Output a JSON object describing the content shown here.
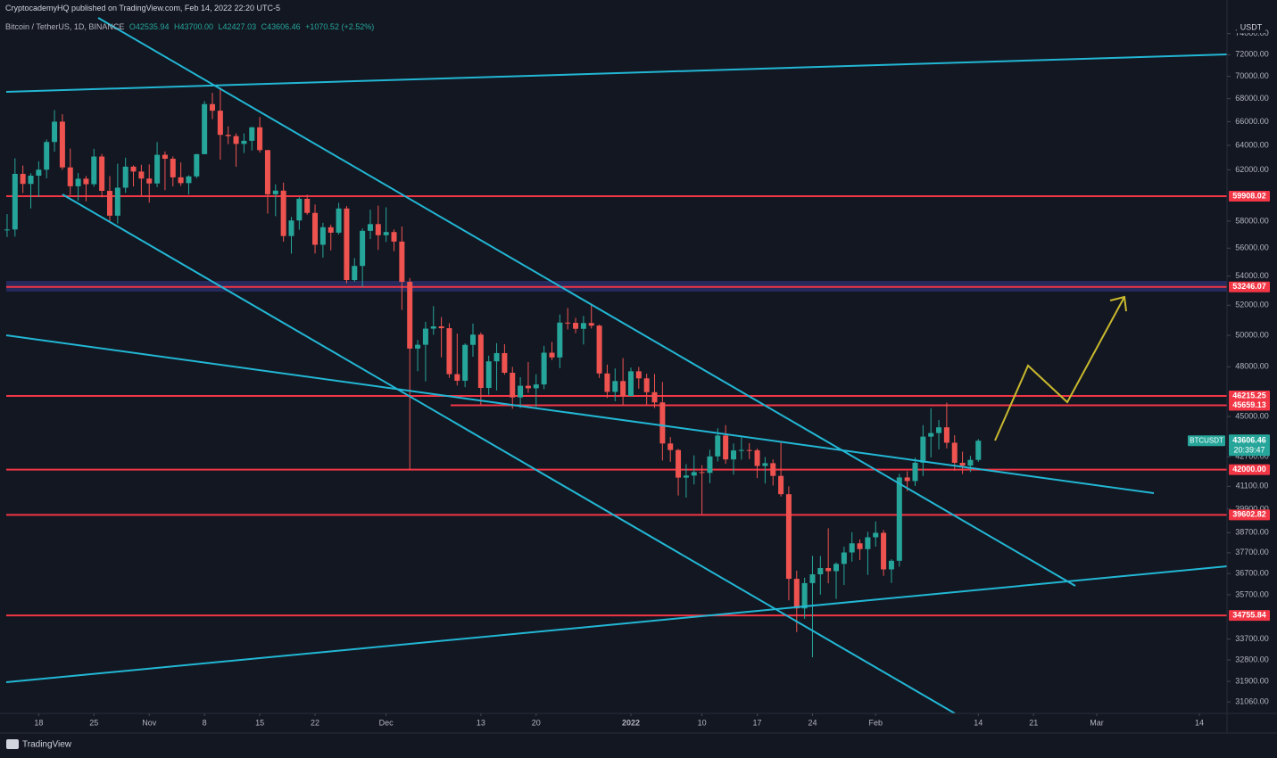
{
  "header": {
    "publisher": "CryptocademyHQ published on TradingView.com, Feb 14, 2022 22:20 UTC-5"
  },
  "footer": {
    "brand": "TradingView"
  },
  "chart_data": {
    "type": "candlestick",
    "symbol": "Bitcoin / TetherUS, 1D, BINANCE",
    "ohlc_legend": [
      "O42535.94",
      "H43700.00",
      "L42427.03",
      "C43606.46",
      "+1070.52 (+2.52%)"
    ],
    "currency": "USDT",
    "up_color": "#26a69a",
    "down_color": "#ef5350",
    "open": [
      57347,
      57374,
      61672,
      60875,
      61528,
      62009,
      64280,
      66001,
      62193,
      60688,
      61286,
      60852,
      63078,
      60328,
      58413,
      60575,
      62253,
      61859,
      61299,
      60911,
      63219,
      62896,
      61395,
      60937,
      61470,
      63273,
      67525,
      66947,
      64882,
      64774,
      64122,
      64380,
      65519,
      63606,
      60058,
      60344,
      56891,
      58052,
      59707,
      58622,
      56247,
      57541,
      57138,
      58960,
      53726,
      54721,
      57274,
      57776,
      56950,
      57184,
      56480,
      53601,
      49152,
      49396,
      50441,
      50589,
      50471,
      47545,
      47140,
      49389,
      50053,
      46702,
      48343,
      48864,
      47632,
      46131,
      46834,
      46681,
      46914,
      48889,
      48588,
      50838,
      50821,
      50429,
      50809,
      50640,
      47588,
      46464,
      47120,
      46216,
      47722,
      47286,
      46446,
      45832,
      43451,
      43082,
      41566,
      41679,
      41864,
      41822,
      42729,
      43902,
      42560,
      43059,
      43084,
      43071,
      42201,
      42352,
      41660,
      40680,
      36445,
      35071,
      36244,
      36660,
      36958,
      36809,
      37160,
      37716,
      38166,
      37881,
      38466,
      38690,
      36896,
      37311,
      41574,
      41382,
      42380,
      43839,
      44043,
      44372,
      43495,
      42373,
      42217,
      42535.94
    ],
    "high": [
      58532,
      62933,
      62350,
      61720,
      62695,
      64486,
      67000,
      66639,
      63732,
      61747,
      61500,
      63710,
      63293,
      61496,
      62499,
      62980,
      62359,
      62405,
      62437,
      64270,
      63500,
      63086,
      62595,
      61560,
      63286,
      67789,
      68524,
      69000,
      65600,
      65000,
      65000,
      65550,
      66401,
      63617,
      60840,
      60976,
      58320,
      59845,
      60029,
      59266,
      57875,
      57735,
      59398,
      59150,
      55280,
      57445,
      58865,
      59176,
      59053,
      57375,
      57600,
      53859,
      49699,
      50891,
      51936,
      51200,
      50797,
      50125,
      49485,
      50777,
      50189,
      48700,
      49500,
      49436,
      47995,
      47360,
      48300,
      47537,
      49328,
      49576,
      51375,
      51810,
      51156,
      51280,
      52088,
      50704,
      48139,
      47900,
      48548,
      47954,
      47990,
      47570,
      47557,
      47070,
      43816,
      43145,
      42300,
      42786,
      42248,
      43100,
      44322,
      44500,
      43448,
      43800,
      43475,
      43176,
      42691,
      42559,
      43505,
      41100,
      36835,
      36499,
      37550,
      37545,
      38919,
      37234,
      38000,
      38720,
      38359,
      38744,
      39265,
      38835,
      37387,
      41772,
      41913,
      42656,
      44500,
      45492,
      44799,
      45821,
      43920,
      42992,
      42760,
      43700
    ],
    "low": [
      56818,
      56850,
      60150,
      58963,
      59844,
      61322,
      63481,
      62000,
      60000,
      59562,
      59510,
      60650,
      59817,
      58000,
      57820,
      60174,
      60673,
      59945,
      59405,
      60624,
      60382,
      60677,
      60721,
      60050,
      61322,
      63273,
      66222,
      62822,
      64100,
      62250,
      63360,
      63576,
      63400,
      58574,
      58373,
      56474,
      55600,
      57353,
      58486,
      55610,
      55317,
      55837,
      57000,
      53500,
      53610,
      53256,
      56666,
      55875,
      56458,
      55777,
      51680,
      42000,
      47727,
      47100,
      50039,
      48600,
      47320,
      46852,
      46751,
      48638,
      45672,
      46290,
      46547,
      47511,
      45456,
      45500,
      46406,
      45558,
      46630,
      48421,
      47920,
      50384,
      50142,
      49412,
      50449,
      47313,
      46096,
      45900,
      45678,
      46208,
      46654,
      45696,
      45500,
      42500,
      42430,
      40610,
      40501,
      41200,
      39650,
      41268,
      42450,
      42311,
      41725,
      42555,
      42581,
      41540,
      41250,
      41138,
      40553,
      35440,
      34008,
      34601,
      32917,
      35701,
      36234,
      35507,
      36155,
      37268,
      37351,
      36632,
      38000,
      36586,
      36250,
      37026,
      40843,
      41116,
      41645,
      42666,
      43117,
      43174,
      41938,
      41760,
      41870,
      42427.03
    ],
    "close": [
      57374,
      61672,
      60875,
      61528,
      62009,
      64280,
      66001,
      62193,
      60688,
      61286,
      60852,
      63078,
      60328,
      58413,
      60575,
      62253,
      61859,
      61299,
      60911,
      63219,
      62896,
      61395,
      60937,
      61470,
      63273,
      67525,
      66947,
      64882,
      64774,
      64122,
      64380,
      65519,
      63606,
      60058,
      60344,
      56891,
      58052,
      59707,
      58622,
      56247,
      57541,
      57138,
      58960,
      53726,
      54721,
      57274,
      57776,
      56950,
      57184,
      56480,
      53601,
      49152,
      49396,
      50441,
      50589,
      50471,
      47545,
      47140,
      49389,
      50053,
      46702,
      48343,
      48864,
      47632,
      46131,
      46834,
      46681,
      46914,
      48889,
      48588,
      50838,
      50821,
      50429,
      50809,
      50640,
      47588,
      46464,
      47120,
      46216,
      47722,
      47286,
      46446,
      45832,
      43451,
      43082,
      41566,
      41679,
      41864,
      41822,
      42729,
      43902,
      42560,
      43059,
      43084,
      43071,
      42201,
      42352,
      41660,
      40680,
      36445,
      35071,
      36244,
      36660,
      36958,
      36809,
      37160,
      37716,
      38166,
      37881,
      38466,
      38690,
      36896,
      37311,
      41574,
      41382,
      42380,
      43839,
      44043,
      44372,
      43495,
      42373,
      42217,
      42535,
      43606.46
    ],
    "xlim": [
      -0.9,
      154.5
    ],
    "xticks": [
      {
        "value": 4,
        "label": "18"
      },
      {
        "value": 11,
        "label": "25"
      },
      {
        "value": 18,
        "label": "Nov"
      },
      {
        "value": 25,
        "label": "8"
      },
      {
        "value": 32,
        "label": "15"
      },
      {
        "value": 39,
        "label": "22"
      },
      {
        "value": 48,
        "label": "Dec"
      },
      {
        "value": 60,
        "label": "13"
      },
      {
        "value": 67,
        "label": "20"
      },
      {
        "value": 79,
        "label": "2022"
      },
      {
        "value": 88,
        "label": "10"
      },
      {
        "value": 95,
        "label": "17"
      },
      {
        "value": 102,
        "label": "24"
      },
      {
        "value": 110,
        "label": "Feb"
      },
      {
        "value": 123,
        "label": "14"
      },
      {
        "value": 130,
        "label": "21"
      },
      {
        "value": 138,
        "label": "Mar"
      },
      {
        "value": 151,
        "label": "14"
      }
    ],
    "ylim": [
      30600,
      77300
    ],
    "log_scale": true,
    "grid": false,
    "yticks": [
      {
        "value": 74000,
        "label": "74000.00"
      },
      {
        "value": 72000,
        "label": "72000.00"
      },
      {
        "value": 70000,
        "label": "70000.00"
      },
      {
        "value": 68000,
        "label": "68000.00"
      },
      {
        "value": 66000,
        "label": "66000.00"
      },
      {
        "value": 64000,
        "label": "64000.00"
      },
      {
        "value": 62000,
        "label": "62000.00"
      },
      {
        "value": 58000,
        "label": "58000.00"
      },
      {
        "value": 56000,
        "label": "56000.00"
      },
      {
        "value": 54000,
        "label": "54000.00"
      },
      {
        "value": 52000,
        "label": "52000.00"
      },
      {
        "value": 50000,
        "label": "50000.00"
      },
      {
        "value": 48000,
        "label": "48000.00"
      },
      {
        "value": 45000,
        "label": "45000.00"
      },
      {
        "value": 42700,
        "label": "42700.00"
      },
      {
        "value": 41100,
        "label": "41100.00"
      },
      {
        "value": 39900,
        "label": "39900.00"
      },
      {
        "value": 38700,
        "label": "38700.00"
      },
      {
        "value": 37700,
        "label": "37700.00"
      },
      {
        "value": 36700,
        "label": "36700.00"
      },
      {
        "value": 35700,
        "label": "35700.00"
      },
      {
        "value": 33700,
        "label": "33700.00"
      },
      {
        "value": 32800,
        "label": "32800.00"
      },
      {
        "value": 31900,
        "label": "31900.00"
      },
      {
        "value": 31060,
        "label": "31060.00"
      }
    ],
    "hlines": {
      "color": "#f23645",
      "values": [
        59908.02,
        53246.07,
        46215.25,
        45659.13,
        42000,
        39602.82,
        34755.84
      ],
      "value_labels": [
        "59908.02",
        "53246.07",
        "46215.25",
        "45659.13",
        "42000.00",
        "39602.82",
        "34755.84"
      ]
    },
    "last_price": {
      "symbol": "BTCUSDT",
      "value": 43606.46,
      "value_label": "43606.46",
      "countdown": "20:39:47",
      "color": "#26a69a"
    }
  }
}
